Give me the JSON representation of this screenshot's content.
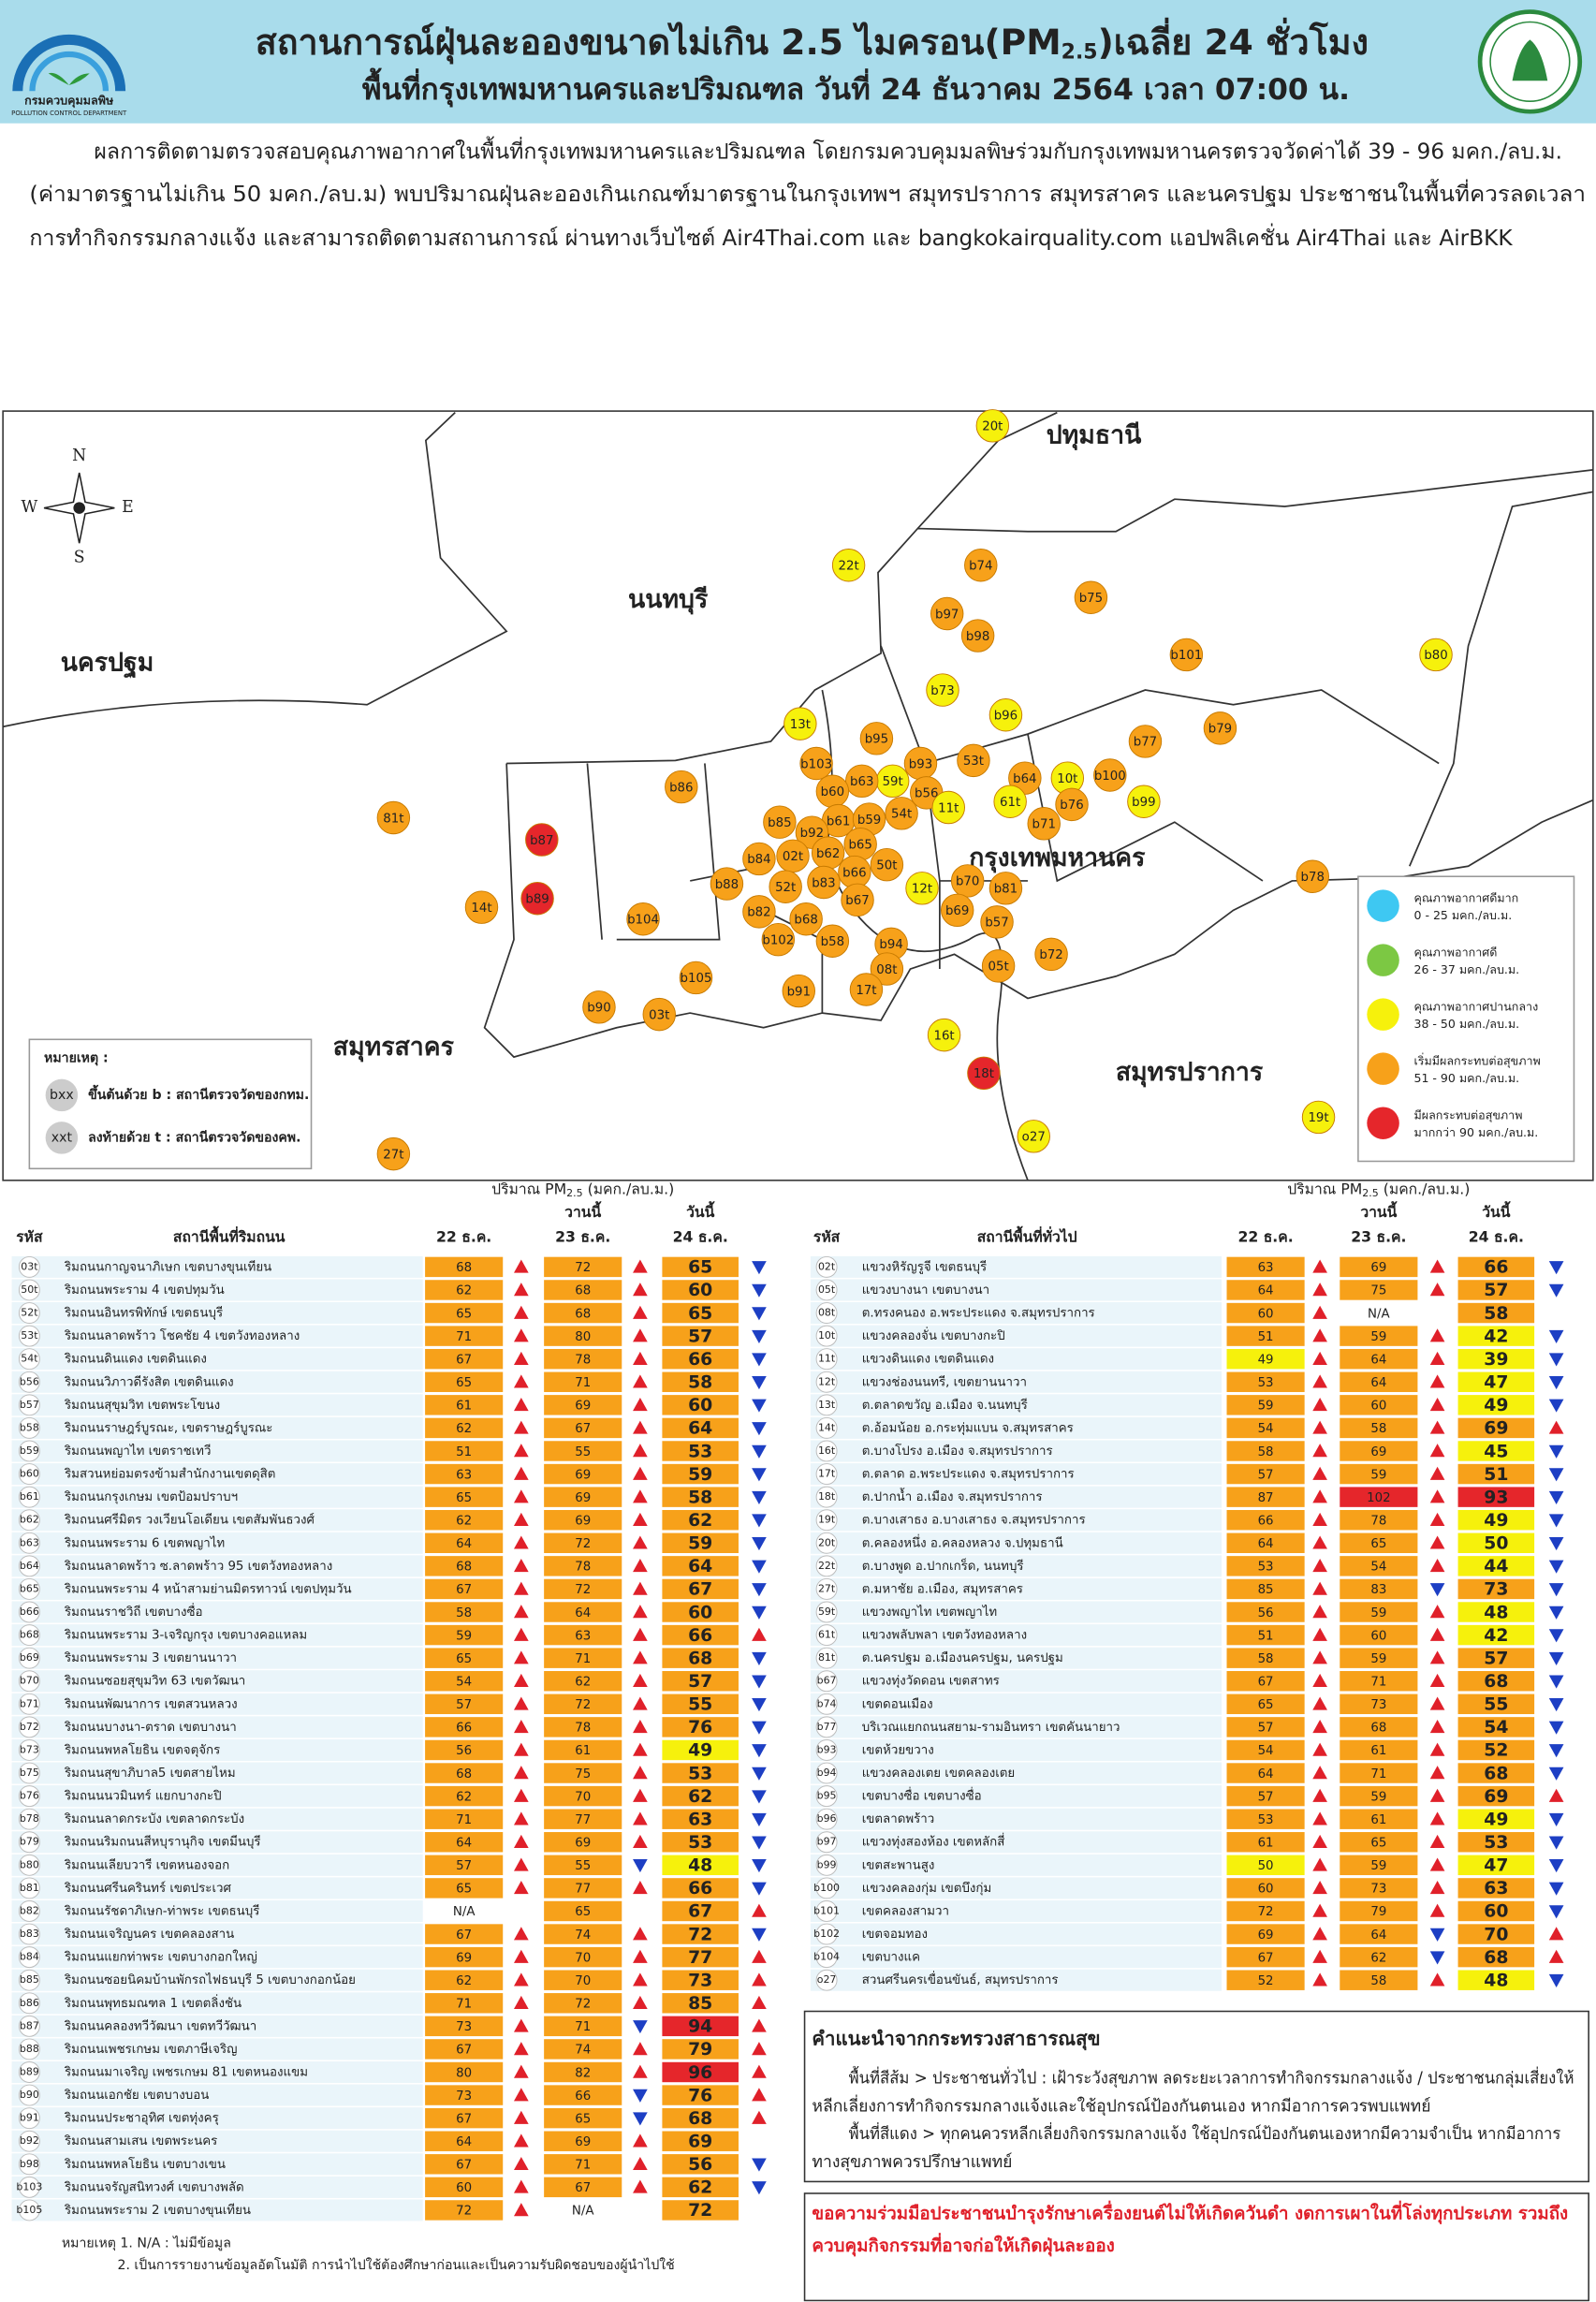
{
  "header": {
    "title": [
      "สถานการณ์ฝุ่นละอองขนาดไม่เกิน 2.5 ไมครอน(PM",
      "2.5",
      ")เฉลี่ย 24 ชั่วโมง"
    ],
    "subtitle": "พื้นที่กรุงเทพมหานครและปริมณฑล วันที่ 24 ธันวาคม 2564 เวลา 07:00 น.",
    "logo_text": "กรมควบคุมมลพิษ",
    "logo_subtext": "POLLUTION CONTROL DEPARTMENT"
  },
  "summary": [
    "ผลการติดตามตรวจสอบคุณภาพอากาศในพื้นที่กรุงเทพมหานครและปริมณฑล โดยกรมควบคุมมลพิษร่วมกับกรุงเทพมหานครตรวจวัดค่าได้ 39 - 96 มคก./ลบ.ม.",
    "(ค่ามาตรฐานไม่เกิน 50 มคก./ลบ.ม) พบปริมาณฝุ่นละอองเกินเกณฑ์มาตรฐานในกรุงเทพฯ สมุทรปราการ สมุทรสาคร  และนครปฐม ประชาชนในพื้นที่ควรลดเวลา",
    "การทำกิจกรรมกลางแจ้ง และสามารถติดตามสถานการณ์ ผ่านทางเว็บไซต์ Air4Thai.com และ bangkokairquality.com แอปพลิเคชั่น Air4Thai และ AirBKK"
  ],
  "map": {
    "compass": [
      "N",
      "E",
      "S",
      "W"
    ],
    "provinces": [
      "ปทุมธานี",
      "นนทบุรี",
      "นครปฐม",
      "กรุงเทพมหานคร",
      "สมุทรสาคร",
      "สมุทรปราการ"
    ],
    "stations": [
      "20t",
      "22t",
      "b74",
      "b75",
      "b97",
      "b98",
      "b101",
      "b80",
      "b73",
      "b96",
      "13t",
      "b95",
      "53t",
      "b79",
      "b77",
      "b103",
      "59t",
      "b93",
      "b63",
      "b56",
      "b64",
      "10t",
      "b100",
      "b60",
      "61t",
      "b76",
      "11t",
      "b99",
      "b86",
      "54t",
      "b85",
      "b61",
      "b59",
      "b92",
      "b71",
      "b65",
      "81t",
      "b87",
      "b62",
      "02t",
      "b84",
      "50t",
      "b66",
      "b88",
      "52t",
      "b83",
      "b70",
      "b81",
      "b78",
      "12t",
      "b89",
      "14t",
      "b104",
      "b82",
      "b68",
      "b67",
      "b69",
      "b57",
      "b102",
      "b58",
      "b94",
      "b72",
      "08t",
      "05t",
      "b105",
      "b91",
      "17t",
      "b90",
      "03t",
      "16t",
      "18t",
      "o27",
      "19t",
      "27t"
    ],
    "legend": [
      {
        "label": "คุณภาพอากาศดีมาก",
        "range": "0 - 25 มคก./ลบ.ม.",
        "min": 0,
        "max": 25,
        "color": "#3ec8f2"
      },
      {
        "label": "คุณภาพอากาศดี",
        "range": "26 - 37 มคก./ลบ.ม.",
        "min": 26,
        "max": 37,
        "color": "#7cc843"
      },
      {
        "label": "คุณภาพอากาศปานกลาง",
        "range": "38 - 50 มคก./ลบ.ม.",
        "min": 38,
        "max": 50,
        "color": "#f6f10c"
      },
      {
        "label": "เริ่มมีผลกระทบต่อสุขภาพ",
        "range": "51 - 90 มคก./ลบ.ม.",
        "min": 51,
        "max": 90,
        "color": "#f7a11a"
      },
      {
        "label": "มีผลกระทบต่อสุขภาพ",
        "range": "มากกว่า 90 มคก./ลบ.ม.",
        "min": 90,
        "max": null,
        "color": "#e5262b"
      }
    ],
    "note": {
      "title": "หมายเหตุ :",
      "items": [
        {
          "symbol": "bxx",
          "text": "ขึ้นต้นด้วย b : สถานีตรวจวัดของกทม."
        },
        {
          "symbol": "xxt",
          "text": "ลงท้ายด้วย t : สถานีตรวจวัดของคพ."
        }
      ]
    }
  },
  "trend_colors": {
    "up": "#e0202a",
    "down": "#1d3fc4"
  },
  "prev_day_trend": "up",
  "tables": [
    {
      "unit_parts": [
        "ปริมาณ PM",
        "2.5",
        " (มคก./ลบ.ม.)"
      ],
      "yesterday": "วานนี้",
      "today": "วันนี้",
      "columns": [
        "รหัส",
        "สถานีพื้นที่ริมถนน",
        "22 ธ.ค.",
        "23 ธ.ค.",
        "24 ธ.ค."
      ],
      "rows": [
        [
          "03t",
          "ริมถนนกาญจนาภิเษก เขตบางขุนเทียน",
          68,
          72,
          65
        ],
        [
          "50t",
          "ริมถนนพระราม 4 เขตปทุมวัน",
          62,
          68,
          60
        ],
        [
          "52t",
          "ริมถนนอินทรพิทักษ์ เขตธนบุรี",
          65,
          68,
          65
        ],
        [
          "53t",
          "ริมถนนลาดพร้าว โชคชัย 4 เขตวังทองหลาง",
          71,
          80,
          57
        ],
        [
          "54t",
          "ริมถนนดินแดง เขตดินแดง",
          67,
          78,
          66
        ],
        [
          "b56",
          "ริมถนนวิภาวดีรังสิต เขตดินแดง",
          65,
          71,
          58
        ],
        [
          "b57",
          "ริมถนนสุขุมวิท เขตพระโขนง",
          61,
          69,
          60
        ],
        [
          "b58",
          "ริมถนนราษฎร์บูรณะ, เขตราษฎร์บูรณะ",
          62,
          67,
          64
        ],
        [
          "b59",
          "ริมถนนพญาไท เขตราชเทวี",
          51,
          55,
          53
        ],
        [
          "b60",
          "ริมสวนหย่อมตรงข้ามสำนักงานเขตดุสิต",
          63,
          69,
          59
        ],
        [
          "b61",
          "ริมถนนกรุงเกษม เขตป้อมปราบฯ",
          65,
          69,
          58
        ],
        [
          "b62",
          "ริมถนนศรีมิตร วงเวียนโอเดียน เขตสัมพันธวงศ์",
          62,
          69,
          62
        ],
        [
          "b63",
          "ริมถนนพระราม 6 เขตพญาไท",
          64,
          72,
          59
        ],
        [
          "b64",
          "ริมถนนลาดพร้าว ซ.ลาดพร้าว 95 เขตวังทองหลาง",
          68,
          78,
          64
        ],
        [
          "b65",
          "ริมถนนพระราม 4 หน้าสามย่านมิตรทาวน์ เขตปทุมวัน",
          67,
          72,
          67
        ],
        [
          "b66",
          "ริมถนนราชวิถี เขตบางซื่อ",
          58,
          64,
          60
        ],
        [
          "b68",
          "ริมถนนพระราม 3-เจริญกรุง เขตบางคอแหลม",
          59,
          63,
          66
        ],
        [
          "b69",
          "ริมถนนพระราม 3 เขตยานนาวา",
          65,
          71,
          68
        ],
        [
          "b70",
          "ริมถนนซอยสุขุมวิท 63 เขตวัฒนา",
          54,
          62,
          57
        ],
        [
          "b71",
          "ริมถนนพัฒนาการ เขตสวนหลวง",
          57,
          72,
          55
        ],
        [
          "b72",
          "ริมถนนบางนา-ตราด เขตบางนา",
          66,
          78,
          76
        ],
        [
          "b73",
          "ริมถนนพหลโยธิน เขตจตุจักร",
          56,
          61,
          49
        ],
        [
          "b75",
          "ริมถนนสุขาภิบาล5 เขตสายไหม",
          68,
          75,
          53
        ],
        [
          "b76",
          "ริมถนนนวมินทร์ แยกบางกะปิ",
          62,
          70,
          62
        ],
        [
          "b78",
          "ริมถนนลาดกระบัง เขตลาดกระบัง",
          71,
          77,
          63
        ],
        [
          "b79",
          "ริมถนนริมถนนสีหบุรานุกิจ เขตมีนบุรี",
          64,
          69,
          53
        ],
        [
          "b80",
          "ริมถนนเลียบวารี เขตหนองจอก",
          57,
          55,
          48
        ],
        [
          "b81",
          "ริมถนนศรีนครินทร์ เขตประเวศ",
          65,
          77,
          66
        ],
        [
          "b82",
          "ริมถนนรัชดาภิเษก-ท่าพระ เขตธนบุรี",
          "N/A",
          65,
          67
        ],
        [
          "b83",
          "ริมถนนเจริญนคร เขตคลองสาน",
          67,
          74,
          72
        ],
        [
          "b84",
          "ริมถนนแยกท่าพระ เขตบางกอกใหญ่",
          69,
          70,
          77
        ],
        [
          "b85",
          "ริมถนนซอยนิคมบ้านพักรถไฟธนบุรี 5 เขตบางกอกน้อย",
          62,
          70,
          73
        ],
        [
          "b86",
          "ริมถนนพุทธมณฑล 1 เขตตลิ่งชัน",
          71,
          72,
          85
        ],
        [
          "b87",
          "ริมถนนคลองทวีวัฒนา เขตทวีวัฒนา",
          73,
          71,
          94
        ],
        [
          "b88",
          "ริมถนนเพชรเกษม เขตภาษีเจริญ",
          67,
          74,
          79
        ],
        [
          "b89",
          "ริมถนนมาเจริญ เพชรเกษม 81 เขตหนองแขม",
          80,
          82,
          96
        ],
        [
          "b90",
          "ริมถนนเอกชัย เขตบางบอน",
          73,
          66,
          76
        ],
        [
          "b91",
          "ริมถนนประชาอุทิศ เขตทุ่งครุ",
          67,
          65,
          68
        ],
        [
          "b92",
          "ริมถนนสามเสน เขตพระนคร",
          64,
          69,
          69
        ],
        [
          "b98",
          "ริมถนนพหลโยธิน เขตบางเขน",
          67,
          71,
          56
        ],
        [
          "b103",
          "ริมถนนจรัญสนิทวงศ์ เขตบางพลัด",
          60,
          67,
          62
        ],
        [
          "b105",
          "ริมถนนพระราม 2 เขตบางขุนเทียน",
          72,
          "N/A",
          72
        ]
      ]
    },
    {
      "unit_parts": [
        "ปริมาณ PM",
        "2.5",
        " (มคก./ลบ.ม.)"
      ],
      "yesterday": "วานนี้",
      "today": "วันนี้",
      "columns": [
        "รหัส",
        "สถานีพื้นที่ทั่วไป",
        "22 ธ.ค.",
        "23 ธ.ค.",
        "24 ธ.ค."
      ],
      "rows": [
        [
          "02t",
          "แขวงหิรัญรูจี เขตธนบุรี",
          63,
          69,
          66
        ],
        [
          "05t",
          "แขวงบางนา เขตบางนา",
          64,
          75,
          57
        ],
        [
          "08t",
          "ต.ทรงคนอง อ.พระประแดง จ.สมุทรปราการ",
          60,
          "N/A",
          58
        ],
        [
          "10t",
          "แขวงคลองจั่น เขตบางกะปิ",
          51,
          59,
          42
        ],
        [
          "11t",
          "แขวงดินแดง เขตดินแดง",
          49,
          64,
          39
        ],
        [
          "12t",
          "แขวงช่องนนทรี, เขตยานนาวา",
          53,
          64,
          47
        ],
        [
          "13t",
          "ต.ตลาดขวัญ อ.เมือง จ.นนทบุรี",
          59,
          60,
          49
        ],
        [
          "14t",
          "ต.อ้อมน้อย อ.กระทุ่มแบน จ.สมุทรสาคร",
          54,
          58,
          69
        ],
        [
          "16t",
          "ต.บางโปรง อ.เมือง จ.สมุทรปราการ",
          58,
          69,
          45
        ],
        [
          "17t",
          "ต.ตลาด อ.พระประแดง จ.สมุทรปราการ",
          57,
          59,
          51
        ],
        [
          "18t",
          "ต.ปากน้ำ อ.เมือง จ.สมุทรปราการ",
          87,
          102,
          93
        ],
        [
          "19t",
          "ต.บางเสาธง อ.บางเสาธง จ.สมุทรปราการ",
          66,
          78,
          49
        ],
        [
          "20t",
          "ต.คลองหนึ่ง อ.คลองหลวง จ.ปทุมธานี",
          64,
          65,
          50
        ],
        [
          "22t",
          "ต.บางพูด อ.ปากเกร็ด, นนทบุรี",
          53,
          54,
          44
        ],
        [
          "27t",
          "ต.มหาชัย อ.เมือง, สมุทรสาคร",
          85,
          83,
          73
        ],
        [
          "59t",
          "แขวงพญาไท เขตพญาไท",
          56,
          59,
          48
        ],
        [
          "61t",
          "แขวงพลับพลา เขตวังทองหลาง",
          51,
          60,
          42
        ],
        [
          "81t",
          "ต.นครปฐม อ.เมืองนครปฐม, นครปฐม",
          58,
          59,
          57
        ],
        [
          "b67",
          "แขวงทุ่งวัดดอน เขตสาทร",
          67,
          71,
          68
        ],
        [
          "b74",
          "เขตดอนเมือง",
          65,
          73,
          55
        ],
        [
          "b77",
          "บริเวณแยกถนนสยาม-รามอินทรา เขตคันนายาว",
          57,
          68,
          54
        ],
        [
          "b93",
          "เขตห้วยขวาง",
          54,
          61,
          52
        ],
        [
          "b94",
          "แขวงคลองเตย เขตคลองเตย",
          64,
          71,
          68
        ],
        [
          "b95",
          "เขตบางซื่อ เขตบางซื่อ",
          57,
          59,
          69
        ],
        [
          "b96",
          "เขตลาดพร้าว",
          53,
          61,
          49
        ],
        [
          "b97",
          "แขวงทุ่งสองห้อง เขตหลักสี่",
          61,
          65,
          53
        ],
        [
          "b99",
          "เขตสะพานสูง",
          50,
          59,
          47
        ],
        [
          "b100",
          "แขวงคลองกุ่ม เขตบึงกุ่ม",
          60,
          73,
          63
        ],
        [
          "b101",
          "เขตคลองสามวา",
          72,
          79,
          60
        ],
        [
          "b102",
          "เขตจอมทอง",
          69,
          64,
          70
        ],
        [
          "b104",
          "เขตบางแค",
          67,
          62,
          68
        ],
        [
          "o27",
          "สวนศรีนครเขื่อนขันธ์, สมุทรปราการ",
          52,
          58,
          48
        ]
      ]
    }
  ],
  "advice": {
    "title": "คำแนะนำจากกระทรวงสาธารณสุข",
    "lines": [
      "พื้นที่สีส้ม > ประชาชนทั่วไป : เฝ้าระวังสุขภาพ ลดระยะเวลาการทำกิจกรรมกลางแจ้ง / ประชาชนกลุ่มเสี่ยงให้",
      "หลีกเลี่ยงการทำกิจกรรมกลางแจ้งและใช้อุปกรณ์ป้องกันตนเอง หากมีอาการควรพบแพทย์",
      "พื้นที่สีแดง > ทุกคนควรหลีกเลี่ยงกิจกรรมกลางแจ้ง ใช้อุปกรณ์ป้องกันตนเองหากมีความจำเป็น หากมีอาการ",
      "ทางสุขภาพควรปรึกษาแพทย์"
    ]
  },
  "appeal": [
    "ขอความร่วมมือประชาชนบำรุงรักษาเครื่องยนต์ไม่ให้เกิดควันดำ งดการเผาในที่โล่งทุกประเภท รวมถึง",
    "ควบคุมกิจกรรมที่อาจก่อให้เกิดฝุ่นละออง"
  ],
  "footnotes": [
    "หมายเหตุ 1. N/A : ไม่มีข้อมูล",
    "2. เป็นการรายงานข้อมูลอัตโนมัติ การนำไปใช้ต้องศึกษาก่อนและเป็นความรับผิดชอบของผู้นำไปใช้"
  ]
}
